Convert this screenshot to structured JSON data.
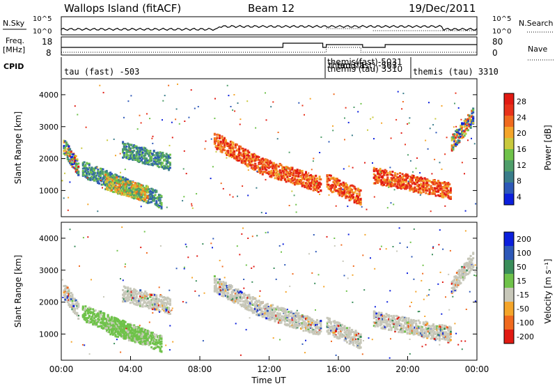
{
  "header": {
    "station": "Wallops Island (fitACF)",
    "beam": "Beam 12",
    "date": "19/Dec/2011"
  },
  "noise_panel": {
    "left_label": "N.Sky",
    "right_label": "N.Search",
    "tick_top": "10^5",
    "tick_bottom": "10^0"
  },
  "freq_panel": {
    "left_label_1": "Freq.",
    "left_label_2": "[MHz]",
    "left_tick_top": "18",
    "left_tick_bottom": "8",
    "right_label": "Nave",
    "right_tick_top": "80",
    "right_tick_bottom": "0"
  },
  "cpid": {
    "label": "CPID",
    "entries": [
      {
        "text": "tau (fast) -503",
        "t": 0.1
      },
      {
        "text": "themis (tau) 3310",
        "t": 19.9
      }
    ],
    "cluttered_text": [
      "themis(fast)-5031",
      "themis (tau) 3310",
      "tau (fast) -503",
      "themis 1"
    ]
  },
  "colors": {
    "power_scale": [
      "#0b1fdc",
      "#2d58b8",
      "#3a7d8a",
      "#4f9e6a",
      "#6fc24a",
      "#c9c93d",
      "#f4a52a",
      "#f06a1e",
      "#e8321a",
      "#e11a12"
    ],
    "velocity_scale": [
      "#e11a12",
      "#f06a1e",
      "#f4a52a",
      "#c7c7b9",
      "#6fc24a",
      "#3a8d5a",
      "#2d58b8",
      "#0b1fdc"
    ]
  },
  "chart_data": [
    {
      "type": "heatmap",
      "name": "power",
      "ylabel": "Slant Range [km]",
      "colorbar_label": "Power [dB]",
      "colorbar_ticks": [
        "28",
        "24",
        "20",
        "16",
        "12",
        "8",
        "4"
      ],
      "y_ticks": [
        "4000",
        "3000",
        "2000",
        "1000"
      ],
      "ylim": [
        180,
        4500
      ],
      "xlim": [
        0,
        24
      ],
      "bands": [
        {
          "t0": 0.1,
          "t1": 1.0,
          "r0": 2400,
          "r1": 1700,
          "level": "mixed"
        },
        {
          "t0": 1.2,
          "t1": 5.8,
          "r0": 1700,
          "r1": 700,
          "level": "low"
        },
        {
          "t0": 2.5,
          "t1": 5.0,
          "r0": 1300,
          "r1": 900,
          "level": "mid"
        },
        {
          "t0": 3.5,
          "t1": 6.3,
          "r0": 2300,
          "r1": 1900,
          "level": "low"
        },
        {
          "t0": 8.8,
          "t1": 11.5,
          "r0": 2600,
          "r1": 1800,
          "level": "high"
        },
        {
          "t0": 11.5,
          "t1": 15.0,
          "r0": 1800,
          "r1": 1200,
          "level": "high"
        },
        {
          "t0": 15.3,
          "t1": 17.3,
          "r0": 1300,
          "r1": 800,
          "level": "high"
        },
        {
          "t0": 18.0,
          "t1": 22.5,
          "r0": 1500,
          "r1": 1000,
          "level": "high"
        },
        {
          "t0": 22.5,
          "t1": 23.8,
          "r0": 2500,
          "r1": 3400,
          "level": "mixed"
        }
      ]
    },
    {
      "type": "heatmap",
      "name": "velocity",
      "xlabel": "Time UT",
      "ylabel": "Slant Range [km]",
      "colorbar_label": "Velocity [m s⁻¹]",
      "colorbar_ticks": [
        "200",
        "100",
        "50",
        "15",
        "-15",
        "-50",
        "-100",
        "-200"
      ],
      "y_ticks": [
        "4000",
        "3000",
        "2000",
        "1000"
      ],
      "x_ticks": [
        "00:00",
        "04:00",
        "08:00",
        "12:00",
        "16:00",
        "20:00",
        "00:00"
      ],
      "ylim": [
        180,
        4500
      ],
      "xlim": [
        0,
        24
      ]
    }
  ]
}
